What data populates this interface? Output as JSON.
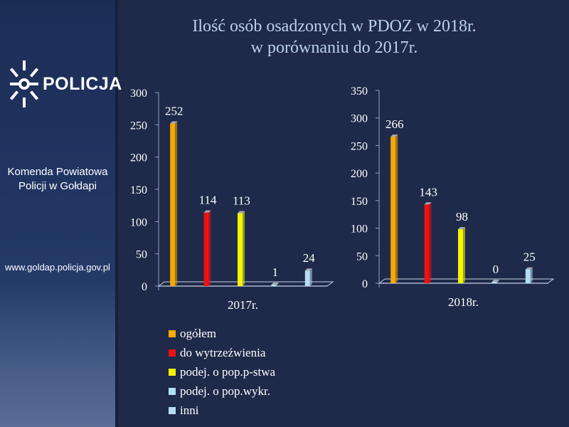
{
  "title": {
    "line1": "Ilość osób osadzonych w PDOZ w 2018r.",
    "line2": "w porównaniu do 2017r."
  },
  "sidebar": {
    "logo_text": "POLICJA",
    "logo_icon": "police-star-icon",
    "unit_line1": "Komenda Powiatowa",
    "unit_line2": "Policji w Gołdapi",
    "website": "www.goldap.policja.gov.pl"
  },
  "colors": {
    "background": "#1f2a4a",
    "title": "#bcd0ec",
    "ogolem": "#f5a800",
    "do_wytrzezwienia": "#ee1111",
    "podej_pop_pstwa": "#f5f500",
    "podej_pop_wykr": "#aee0f5",
    "inni": "#b8dcf2"
  },
  "chart_data": [
    {
      "type": "bar",
      "category": "2017r.",
      "series": [
        {
          "name": "ogółem",
          "value": 252
        },
        {
          "name": "do wytrzeźwienia",
          "value": 114
        },
        {
          "name": "podej. o pop.p-stwa",
          "value": 113
        },
        {
          "name": "podej. o pop.wykr.",
          "value": 1
        },
        {
          "name": "inni",
          "value": 24
        }
      ],
      "ylim": [
        0,
        300
      ],
      "yticks": [
        "0",
        "50",
        "100",
        "150",
        "200",
        "250",
        "300"
      ],
      "data_labels": [
        "252",
        "114",
        "113",
        "1",
        "24"
      ]
    },
    {
      "type": "bar",
      "category": "2018r.",
      "series": [
        {
          "name": "ogółem",
          "value": 266
        },
        {
          "name": "do wytrzeźwienia",
          "value": 143
        },
        {
          "name": "podej. o pop.p-stwa",
          "value": 98
        },
        {
          "name": "podej. o pop.wykr.",
          "value": 0
        },
        {
          "name": "inni",
          "value": 25
        }
      ],
      "ylim": [
        0,
        350
      ],
      "yticks": [
        "0",
        "50",
        "100",
        "150",
        "200",
        "250",
        "300",
        "350"
      ],
      "data_labels": [
        "266",
        "143",
        "98",
        "0",
        "25"
      ]
    }
  ],
  "legend": {
    "position": "bottom-left",
    "items": [
      "ogółem",
      "do wytrzeźwienia",
      "podej. o pop.p-stwa",
      "podej. o pop.wykr.",
      "inni"
    ]
  }
}
